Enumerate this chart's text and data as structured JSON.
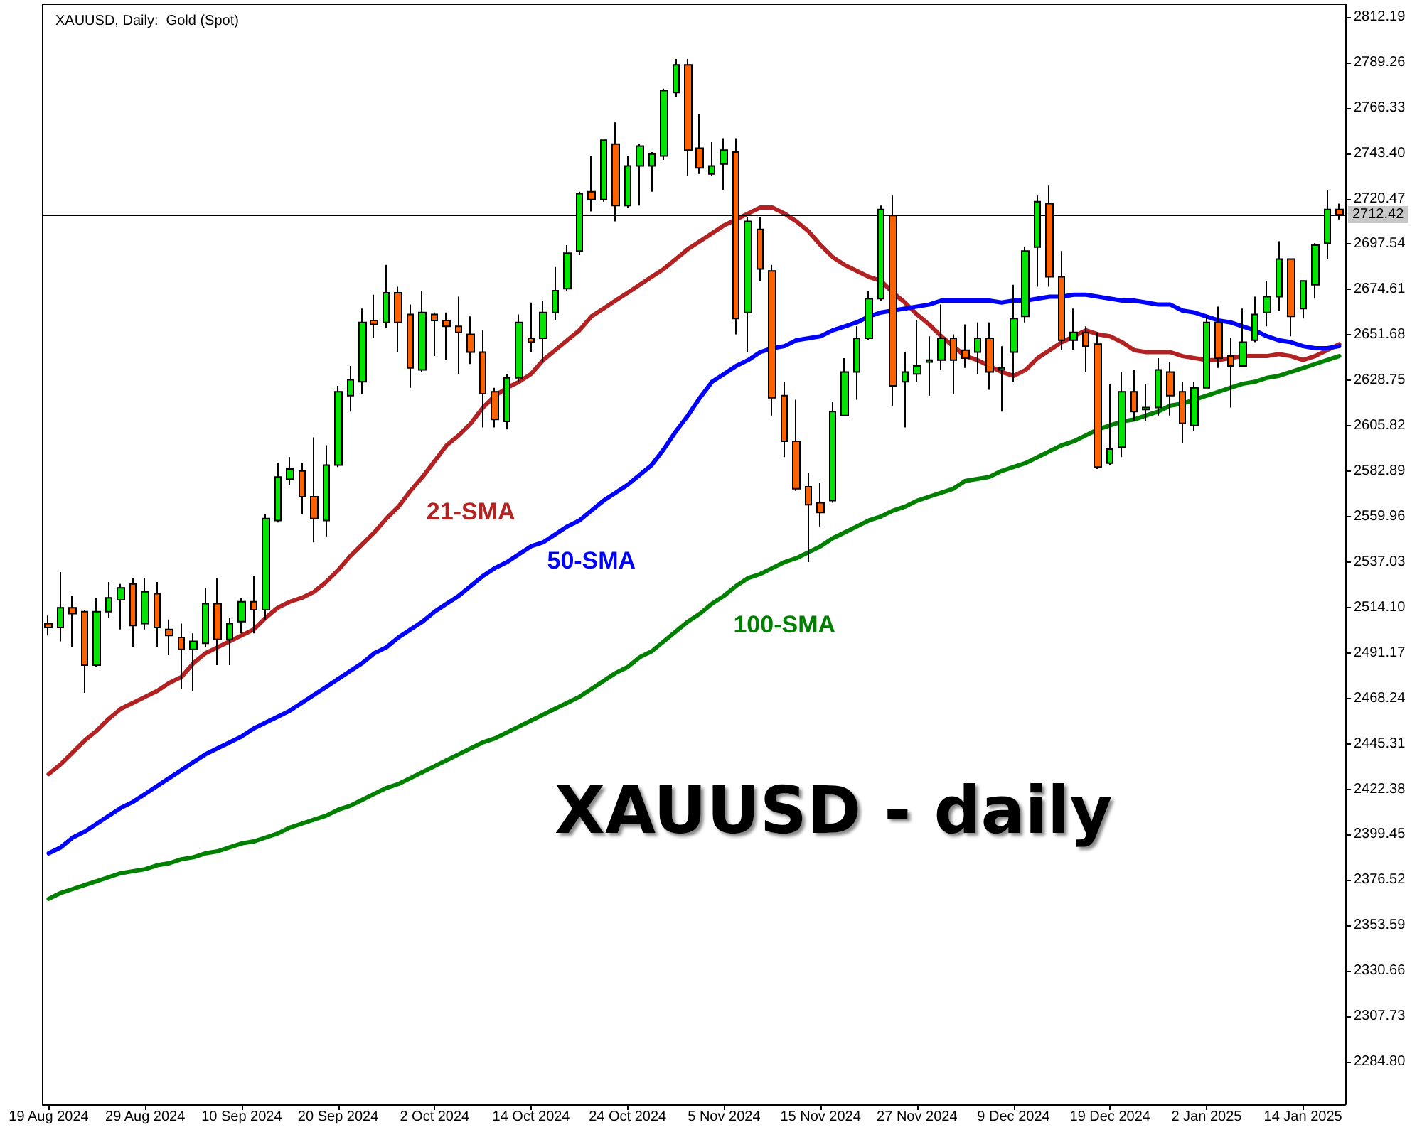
{
  "chart_data": {
    "type": "candlestick",
    "title": "XAUUSD - daily",
    "subtitle": "XAUUSD, Daily:  Gold (Spot)",
    "categories": [
      "19 Aug 2024",
      null,
      null,
      null,
      null,
      null,
      null,
      null,
      "29 Aug 2024",
      null,
      null,
      null,
      null,
      null,
      null,
      null,
      "10 Sep 2024",
      null,
      null,
      null,
      null,
      null,
      null,
      null,
      "20 Sep 2024",
      null,
      null,
      null,
      null,
      null,
      null,
      null,
      "2 Oct 2024",
      null,
      null,
      null,
      null,
      null,
      null,
      null,
      "14 Oct 2024",
      null,
      null,
      null,
      null,
      null,
      null,
      null,
      "24 Oct 2024",
      null,
      null,
      null,
      null,
      null,
      null,
      null,
      "5 Nov 2024",
      null,
      null,
      null,
      null,
      null,
      null,
      null,
      "15 Nov 2024",
      null,
      null,
      null,
      null,
      null,
      null,
      null,
      "27 Nov 2024",
      null,
      null,
      null,
      null,
      null,
      null,
      null,
      "9 Dec 2024",
      null,
      null,
      null,
      null,
      null,
      null,
      null,
      "19 Dec 2024",
      null,
      null,
      null,
      null,
      null,
      null,
      null,
      "2 Jan 2025",
      null,
      null,
      null,
      null,
      null,
      null,
      null,
      "14 Jan 2025",
      null,
      null,
      null
    ],
    "ohlc": [
      [
        2506,
        2510,
        2500,
        2504
      ],
      [
        2504,
        2532,
        2497,
        2514
      ],
      [
        2514,
        2520,
        2494,
        2511
      ],
      [
        2512,
        2513,
        2471,
        2485
      ],
      [
        2485,
        2519,
        2484,
        2512
      ],
      [
        2512,
        2527,
        2509,
        2519
      ],
      [
        2518,
        2526,
        2503,
        2524
      ],
      [
        2526,
        2529,
        2494,
        2505
      ],
      [
        2506,
        2529,
        2503,
        2522
      ],
      [
        2521,
        2527,
        2494,
        2504
      ],
      [
        2503,
        2508,
        2490,
        2500
      ],
      [
        2499,
        2506,
        2473,
        2493
      ],
      [
        2493,
        2501,
        2472,
        2497
      ],
      [
        2496,
        2524,
        2494,
        2516
      ],
      [
        2516,
        2529,
        2485,
        2498
      ],
      [
        2498,
        2509,
        2485,
        2506
      ],
      [
        2507,
        2519,
        2501,
        2517
      ],
      [
        2517,
        2530,
        2501,
        2513
      ],
      [
        2513,
        2561,
        2508,
        2559
      ],
      [
        2558,
        2587,
        2557,
        2580
      ],
      [
        2579,
        2590,
        2576,
        2584
      ],
      [
        2583,
        2587,
        2561,
        2570
      ],
      [
        2570,
        2600,
        2547,
        2559
      ],
      [
        2558,
        2596,
        2550,
        2586
      ],
      [
        2586,
        2626,
        2585,
        2623
      ],
      [
        2621,
        2636,
        2613,
        2629
      ],
      [
        2628,
        2665,
        2622,
        2658
      ],
      [
        2659,
        2672,
        2650,
        2657
      ],
      [
        2658,
        2687,
        2655,
        2673
      ],
      [
        2673,
        2676,
        2643,
        2658
      ],
      [
        2662,
        2667,
        2625,
        2635
      ],
      [
        2634,
        2674,
        2633,
        2663
      ],
      [
        2662,
        2663,
        2641,
        2659
      ],
      [
        2659,
        2663,
        2639,
        2656
      ],
      [
        2656,
        2671,
        2632,
        2653
      ],
      [
        2652,
        2661,
        2637,
        2643
      ],
      [
        2643,
        2654,
        2605,
        2622
      ],
      [
        2623,
        2625,
        2605,
        2609
      ],
      [
        2608,
        2632,
        2604,
        2630
      ],
      [
        2630,
        2662,
        2628,
        2658
      ],
      [
        2650,
        2668,
        2643,
        2648
      ],
      [
        2650,
        2669,
        2638,
        2663
      ],
      [
        2663,
        2686,
        2659,
        2674
      ],
      [
        2675,
        2697,
        2674,
        2693
      ],
      [
        2694,
        2724,
        2692,
        2723
      ],
      [
        2724,
        2742,
        2714,
        2720
      ],
      [
        2720,
        2750,
        2719,
        2750
      ],
      [
        2748,
        2759,
        2709,
        2717
      ],
      [
        2717,
        2742,
        2716,
        2737
      ],
      [
        2737,
        2748,
        2717,
        2747
      ],
      [
        2737,
        2744,
        2724,
        2743
      ],
      [
        2742,
        2776,
        2740,
        2775
      ],
      [
        2774,
        2791,
        2772,
        2788
      ],
      [
        2788,
        2791,
        2732,
        2745
      ],
      [
        2746,
        2763,
        2733,
        2736
      ],
      [
        2733,
        2749,
        2732,
        2737
      ],
      [
        2738,
        2751,
        2725,
        2745
      ],
      [
        2744,
        2751,
        2652,
        2660
      ],
      [
        2663,
        2711,
        2643,
        2709
      ],
      [
        2705,
        2711,
        2679,
        2685
      ],
      [
        2684,
        2687,
        2611,
        2620
      ],
      [
        2621,
        2628,
        2590,
        2598
      ],
      [
        2598,
        2619,
        2573,
        2574
      ],
      [
        2575,
        2582,
        2537,
        2566
      ],
      [
        2567,
        2577,
        2555,
        2562
      ],
      [
        2568,
        2618,
        2567,
        2613
      ],
      [
        2611,
        2640,
        2611,
        2633
      ],
      [
        2633,
        2656,
        2619,
        2650
      ],
      [
        2650,
        2674,
        2649,
        2670
      ],
      [
        2670,
        2717,
        2669,
        2715
      ],
      [
        2712,
        2722,
        2616,
        2626
      ],
      [
        2628,
        2643,
        2605,
        2633
      ],
      [
        2632,
        2659,
        2628,
        2636
      ],
      [
        2638,
        2651,
        2621,
        2639
      ],
      [
        2639,
        2667,
        2634,
        2650
      ],
      [
        2650,
        2652,
        2622,
        2639
      ],
      [
        2644,
        2657,
        2635,
        2640
      ],
      [
        2643,
        2658,
        2632,
        2650
      ],
      [
        2650,
        2658,
        2624,
        2633
      ],
      [
        2634,
        2646,
        2613,
        2635
      ],
      [
        2643,
        2677,
        2628,
        2660
      ],
      [
        2661,
        2696,
        2658,
        2694
      ],
      [
        2696,
        2722,
        2676,
        2719
      ],
      [
        2718,
        2727,
        2676,
        2681
      ],
      [
        2681,
        2694,
        2644,
        2649
      ],
      [
        2649,
        2665,
        2644,
        2653
      ],
      [
        2653,
        2656,
        2633,
        2646
      ],
      [
        2647,
        2653,
        2584,
        2585
      ],
      [
        2587,
        2627,
        2586,
        2594
      ],
      [
        2595,
        2633,
        2590,
        2623
      ],
      [
        2623,
        2634,
        2608,
        2613
      ],
      [
        2614,
        2627,
        2608,
        2615
      ],
      [
        2615,
        2640,
        2611,
        2634
      ],
      [
        2633,
        2638,
        2611,
        2621
      ],
      [
        2623,
        2628,
        2597,
        2607
      ],
      [
        2606,
        2628,
        2603,
        2625
      ],
      [
        2625,
        2661,
        2625,
        2658
      ],
      [
        2658,
        2666,
        2635,
        2640
      ],
      [
        2641,
        2650,
        2615,
        2636
      ],
      [
        2636,
        2665,
        2636,
        2648
      ],
      [
        2649,
        2671,
        2648,
        2662
      ],
      [
        2663,
        2679,
        2656,
        2671
      ],
      [
        2671,
        2699,
        2664,
        2690
      ],
      [
        2690,
        2690,
        2651,
        2661
      ],
      [
        2665,
        2679,
        2660,
        2679
      ],
      [
        2677,
        2698,
        2670,
        2697
      ],
      [
        2698,
        2725,
        2690,
        2715
      ],
      [
        2715,
        2718,
        2710,
        2712.42
      ]
    ],
    "colors": [
      "#ff6000",
      "#00e600",
      "#ff6000",
      "#ff6000",
      "#00e600",
      "#00e600",
      "#00e600",
      "#ff6000",
      "#00e600",
      "#ff6000",
      "#ff6000",
      "#ff6000",
      "#00e600",
      "#00e600",
      "#ff6000",
      "#00e600",
      "#00e600",
      "#ff6000",
      "#00e600",
      "#00e600",
      "#00e600",
      "#ff6000",
      "#ff6000",
      "#00e600",
      "#00e600",
      "#00e600",
      "#00e600",
      "#ff6000",
      "#00e600",
      "#ff6000",
      "#ff6000",
      "#00e600",
      "#ff6000",
      "#ff6000",
      "#ff6000",
      "#ff6000",
      "#ff6000",
      "#ff6000",
      "#00e600",
      "#00e600",
      "#ff6000",
      "#00e600",
      "#00e600",
      "#00e600",
      "#00e600",
      "#ff6000",
      "#00e600",
      "#ff6000",
      "#00e600",
      "#00e600",
      "#00e600",
      "#00e600",
      "#00e600",
      "#ff6000",
      "#ff6000",
      "#00e600",
      "#00e600",
      "#ff6000",
      "#00e600",
      "#ff6000",
      "#ff6000",
      "#ff6000",
      "#ff6000",
      "#ff6000",
      "#ff6000",
      "#00e600",
      "#00e600",
      "#00e600",
      "#00e600",
      "#00e600",
      "#ff6000",
      "#00e600",
      "#00e600",
      "#00e600",
      "#00e600",
      "#ff6000",
      "#ff6000",
      "#00e600",
      "#ff6000",
      "#00e600",
      "#00e600",
      "#00e600",
      "#00e600",
      "#ff6000",
      "#ff6000",
      "#00e600",
      "#ff6000",
      "#ff6000",
      "#00e600",
      "#00e600",
      "#ff6000",
      "#00e600",
      "#00e600",
      "#ff6000",
      "#ff6000",
      "#00e600",
      "#00e600",
      "#ff6000",
      "#ff6000",
      "#00e600",
      "#00e600",
      "#00e600",
      "#00e600",
      "#ff6000",
      "#00e600",
      "#00e600",
      "#00e600",
      "#ff6000"
    ],
    "series": [
      {
        "type": "line",
        "name": "21-SMA",
        "color": "#b22222",
        "values": [
          2430,
          2435,
          2441,
          2447,
          2452,
          2458,
          2463,
          2466,
          2469,
          2472,
          2476,
          2479,
          2486,
          2491,
          2494,
          2497,
          2500,
          2503,
          2509,
          2514,
          2517,
          2519,
          2522,
          2527,
          2533,
          2540,
          2546,
          2552,
          2559,
          2565,
          2573,
          2580,
          2588,
          2596,
          2601,
          2607,
          2615,
          2621,
          2625,
          2628,
          2632,
          2639,
          2644,
          2649,
          2654,
          2661,
          2665,
          2669,
          2673,
          2677,
          2681,
          2685,
          2690,
          2695,
          2699,
          2703,
          2707,
          2710,
          2713,
          2716,
          2716,
          2713,
          2709,
          2704,
          2697,
          2691,
          2687,
          2684,
          2681,
          2679,
          2673,
          2668,
          2662,
          2657,
          2651,
          2646,
          2641,
          2639,
          2636,
          2633,
          2631,
          2634,
          2640,
          2644,
          2648,
          2651,
          2654,
          2652,
          2651,
          2648,
          2644,
          2643,
          2643,
          2643,
          2641,
          2640,
          2639,
          2639,
          2640,
          2641,
          2641,
          2641,
          2642,
          2641,
          2639,
          2641,
          2644,
          2647
        ]
      },
      {
        "type": "line",
        "name": "50-SMA",
        "color": "#0000ff",
        "values": [
          2390,
          2393,
          2398,
          2401,
          2405,
          2409,
          2413,
          2416,
          2420,
          2424,
          2428,
          2432,
          2436,
          2440,
          2443,
          2446,
          2449,
          2453,
          2456,
          2459,
          2462,
          2466,
          2470,
          2474,
          2478,
          2482,
          2486,
          2491,
          2494,
          2499,
          2503,
          2507,
          2512,
          2516,
          2520,
          2525,
          2530,
          2534,
          2537,
          2541,
          2545,
          2547,
          2551,
          2555,
          2558,
          2563,
          2568,
          2572,
          2576,
          2581,
          2586,
          2594,
          2603,
          2611,
          2620,
          2628,
          2632,
          2636,
          2639,
          2643,
          2645,
          2646,
          2649,
          2650,
          2651,
          2654,
          2656,
          2658,
          2661,
          2663,
          2664,
          2665,
          2666,
          2667,
          2669,
          2669,
          2669,
          2669,
          2669,
          2668,
          2669,
          2669,
          2670,
          2671,
          2671,
          2672,
          2672,
          2671,
          2670,
          2669,
          2669,
          2668,
          2667,
          2667,
          2664,
          2663,
          2661,
          2659,
          2658,
          2656,
          2654,
          2651,
          2649,
          2648,
          2646,
          2645,
          2645,
          2646
        ]
      },
      {
        "type": "line",
        "name": "100-SMA",
        "color": "#008000",
        "values": [
          2367,
          2370,
          2372,
          2374,
          2376,
          2378,
          2380,
          2381,
          2382,
          2384,
          2385,
          2387,
          2388,
          2390,
          2391,
          2393,
          2395,
          2396,
          2398,
          2400,
          2403,
          2405,
          2407,
          2409,
          2412,
          2414,
          2417,
          2420,
          2423,
          2425,
          2428,
          2431,
          2434,
          2437,
          2440,
          2443,
          2446,
          2448,
          2451,
          2454,
          2457,
          2460,
          2463,
          2466,
          2469,
          2473,
          2477,
          2481,
          2484,
          2489,
          2492,
          2497,
          2502,
          2507,
          2511,
          2516,
          2520,
          2525,
          2529,
          2531,
          2534,
          2537,
          2539,
          2542,
          2545,
          2549,
          2552,
          2555,
          2558,
          2560,
          2563,
          2565,
          2568,
          2570,
          2572,
          2574,
          2578,
          2579,
          2580,
          2583,
          2585,
          2587,
          2590,
          2593,
          2596,
          2598,
          2601,
          2604,
          2606,
          2608,
          2609,
          2611,
          2613,
          2616,
          2617,
          2619,
          2621,
          2623,
          2625,
          2627,
          2628,
          2630,
          2631,
          2633,
          2635,
          2637,
          2639,
          2641
        ]
      }
    ],
    "ylim": [
      2263.3,
      2818.6
    ],
    "yticks": [
      2812.19,
      2789.26,
      2766.33,
      {
        "value": 2743.4,
        "label": "2743.40"
      },
      2720.47,
      2697.54,
      2674.61,
      2651.68,
      2628.75,
      2605.82,
      2582.89,
      2559.96,
      2537.03,
      {
        "value": 2514.1,
        "label": "2514.10"
      },
      2491.17,
      2468.24,
      2445.31,
      2422.38,
      2399.45,
      2376.52,
      2353.59,
      2330.66,
      2307.73,
      {
        "value": 2284.8,
        "label": "2284.80"
      }
    ],
    "ref_lines": [
      {
        "axis": "y",
        "value": 2712.42,
        "label": "2712.42",
        "color": "#000000"
      }
    ],
    "marker": "none"
  }
}
